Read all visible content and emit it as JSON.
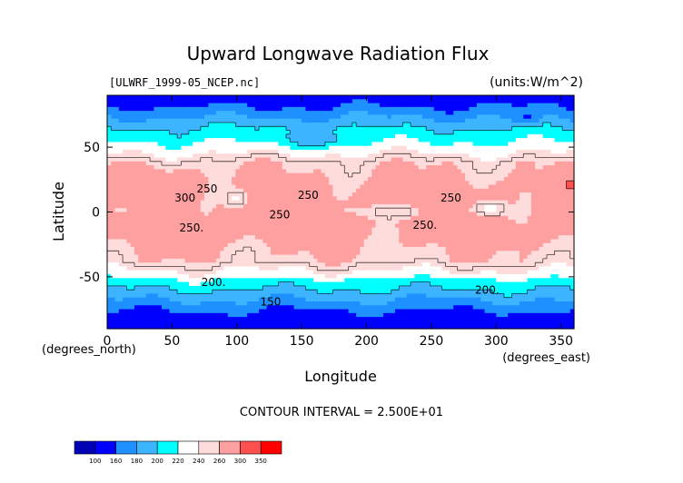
{
  "chart_data": {
    "type": "heatmap",
    "title": "Upward Longwave Radiation Flux",
    "subtitle_left": "[ULWRF_1999-05_NCEP.nc]",
    "units": "(units:W/m^2)",
    "xlabel": "Longitude",
    "ylabel": "Latitude",
    "x_unit_label": "(degrees_east)",
    "y_unit_label": "(degrees_north)",
    "xlim": [
      0,
      360
    ],
    "ylim": [
      -90,
      90
    ],
    "x_ticks": [
      0,
      50,
      100,
      150,
      200,
      250,
      300,
      350
    ],
    "y_ticks": [
      50,
      0,
      -50
    ],
    "contour_interval_text": "CONTOUR INTERVAL = 2.500E+01",
    "contour_labels": [
      {
        "text": "250",
        "lon": 77,
        "lat": 15
      },
      {
        "text": "300",
        "lon": 60,
        "lat": 8
      },
      {
        "text": "250",
        "lon": 155,
        "lat": 10
      },
      {
        "text": "250",
        "lon": 133,
        "lat": -5
      },
      {
        "text": "250",
        "lon": 265,
        "lat": 8
      },
      {
        "text": "250.",
        "lon": 65,
        "lat": -15
      },
      {
        "text": "250.",
        "lon": 245,
        "lat": -13
      },
      {
        "text": "200.",
        "lon": 82,
        "lat": -57
      },
      {
        "text": "200.",
        "lon": 293,
        "lat": -63
      },
      {
        "text": "150",
        "lon": 126,
        "lat": -72
      }
    ],
    "colorbar": {
      "levels": [
        "100",
        "160",
        "180",
        "200",
        "220",
        "240",
        "260",
        "300",
        "350"
      ],
      "colors": [
        "#0000b4",
        "#0000ff",
        "#1e90ff",
        "#3cb4ff",
        "#00ffff",
        "#ffffff",
        "#ffdcdc",
        "#ffa0a0",
        "#ff5050",
        "#ff0000"
      ]
    },
    "grid": false
  }
}
